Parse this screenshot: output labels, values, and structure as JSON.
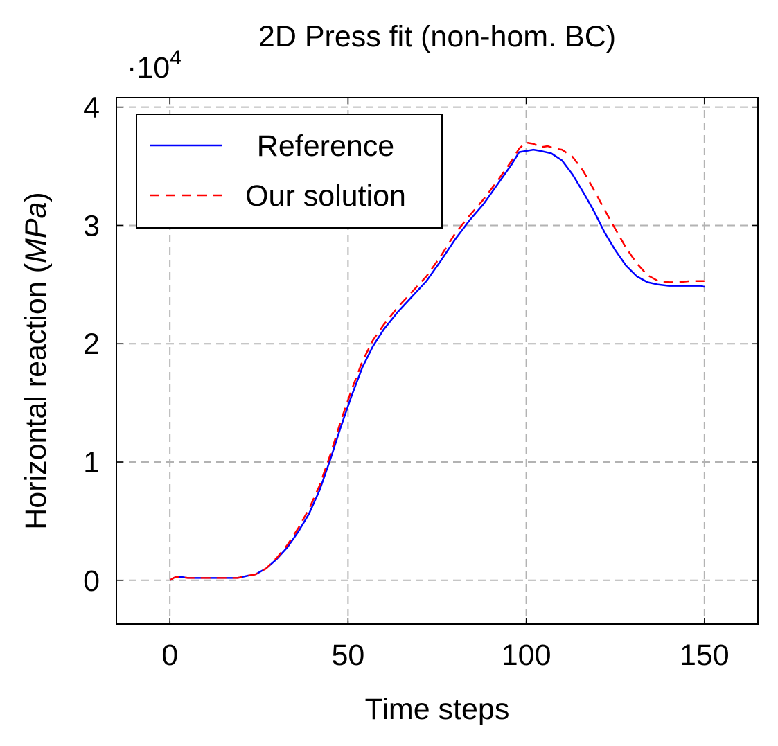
{
  "chart_data": {
    "type": "line",
    "title": "2D Press fit (non-hom. BC)",
    "xlabel": "Time steps",
    "ylabel_main": "Horizontal reaction (",
    "ylabel_unit": "MPa",
    "ylabel_close": ")",
    "y_scale_dot": "·",
    "y_scale_base": "10",
    "y_scale_exp": "4",
    "xlim": [
      -15,
      165
    ],
    "ylim": [
      -0.37,
      4.08
    ],
    "x_ticks": [
      0,
      50,
      100,
      150
    ],
    "x_tick_labels": [
      "0",
      "50",
      "100",
      "150"
    ],
    "y_ticks": [
      0,
      1,
      2,
      3,
      4
    ],
    "y_tick_labels": [
      "0",
      "1",
      "2",
      "3",
      "4"
    ],
    "grid": true,
    "legend_position": "top-left",
    "series": [
      {
        "name": "Reference",
        "color": "#0000ff",
        "style": "solid",
        "x": [
          0,
          1,
          2,
          3,
          5,
          7,
          10,
          13,
          16,
          19,
          22,
          24,
          27,
          30,
          33,
          36,
          39,
          42,
          45,
          48,
          51,
          54,
          57,
          60,
          64,
          68,
          72,
          76,
          80,
          84,
          88,
          92,
          96,
          98,
          100,
          102,
          104,
          107,
          110,
          113,
          116,
          119,
          122,
          125,
          128,
          131,
          134,
          137,
          140,
          143,
          146,
          149,
          150
        ],
        "values": [
          0.0,
          0.02,
          0.03,
          0.03,
          0.02,
          0.02,
          0.02,
          0.02,
          0.02,
          0.02,
          0.04,
          0.05,
          0.1,
          0.18,
          0.28,
          0.41,
          0.56,
          0.76,
          1.02,
          1.3,
          1.56,
          1.8,
          1.98,
          2.12,
          2.27,
          2.4,
          2.53,
          2.7,
          2.88,
          3.04,
          3.18,
          3.35,
          3.52,
          3.62,
          3.63,
          3.64,
          3.63,
          3.61,
          3.55,
          3.43,
          3.28,
          3.12,
          2.94,
          2.79,
          2.66,
          2.57,
          2.52,
          2.5,
          2.49,
          2.49,
          2.49,
          2.49,
          2.48
        ]
      },
      {
        "name": "Our solution",
        "color": "#ff0000",
        "style": "dashed",
        "x": [
          0,
          1,
          2,
          3,
          5,
          7,
          10,
          13,
          16,
          19,
          22,
          24,
          27,
          30,
          33,
          36,
          39,
          42,
          45,
          48,
          51,
          54,
          57,
          60,
          64,
          68,
          72,
          76,
          80,
          84,
          88,
          92,
          96,
          98,
          100,
          102,
          104,
          106,
          108,
          110,
          113,
          116,
          119,
          122,
          125,
          128,
          131,
          134,
          137,
          140,
          143,
          146,
          148,
          150
        ],
        "values": [
          0.0,
          0.02,
          0.03,
          0.03,
          0.02,
          0.02,
          0.02,
          0.02,
          0.02,
          0.02,
          0.04,
          0.05,
          0.1,
          0.19,
          0.3,
          0.44,
          0.6,
          0.8,
          1.06,
          1.35,
          1.61,
          1.85,
          2.03,
          2.16,
          2.31,
          2.44,
          2.57,
          2.74,
          2.93,
          3.08,
          3.22,
          3.38,
          3.55,
          3.65,
          3.7,
          3.69,
          3.66,
          3.67,
          3.65,
          3.64,
          3.58,
          3.46,
          3.3,
          3.13,
          2.97,
          2.81,
          2.68,
          2.58,
          2.53,
          2.52,
          2.52,
          2.53,
          2.53,
          2.53
        ]
      }
    ]
  }
}
